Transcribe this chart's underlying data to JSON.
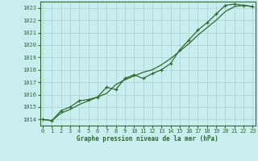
{
  "title": "Graphe pression niveau de la mer (hPa)",
  "background_color": "#c8eef0",
  "grid_color": "#aacfcc",
  "line_color": "#2d6a2d",
  "x_min": 0,
  "x_max": 23,
  "y_min": 1013.5,
  "y_max": 1023.5,
  "yticks": [
    1014,
    1015,
    1016,
    1017,
    1018,
    1019,
    1020,
    1021,
    1022,
    1023
  ],
  "xticks": [
    0,
    1,
    2,
    3,
    4,
    5,
    6,
    7,
    8,
    9,
    10,
    11,
    12,
    13,
    14,
    15,
    16,
    17,
    18,
    19,
    20,
    21,
    22,
    23
  ],
  "line1_x": [
    0,
    1,
    2,
    3,
    4,
    5,
    6,
    7,
    8,
    9,
    10,
    11,
    12,
    13,
    14,
    15,
    16,
    17,
    18,
    19,
    20,
    21,
    22,
    23
  ],
  "line1_y": [
    1014.0,
    1013.9,
    1014.5,
    1014.8,
    1015.2,
    1015.5,
    1015.8,
    1016.1,
    1016.8,
    1017.2,
    1017.5,
    1017.8,
    1018.0,
    1018.4,
    1018.9,
    1019.5,
    1020.1,
    1020.8,
    1021.4,
    1022.0,
    1022.7,
    1023.1,
    1023.2,
    1023.1
  ],
  "line2_x": [
    0,
    1,
    2,
    3,
    4,
    5,
    6,
    7,
    8,
    9,
    10,
    11,
    12,
    13,
    14,
    15,
    16,
    17,
    18,
    19,
    20,
    21,
    22,
    23
  ],
  "line2_y": [
    1014.0,
    1013.9,
    1014.7,
    1015.0,
    1015.5,
    1015.6,
    1015.8,
    1016.6,
    1016.4,
    1017.3,
    1017.6,
    1017.3,
    1017.7,
    1018.0,
    1018.5,
    1019.6,
    1020.4,
    1021.2,
    1021.8,
    1022.5,
    1023.2,
    1023.3,
    1023.2,
    1023.1
  ]
}
